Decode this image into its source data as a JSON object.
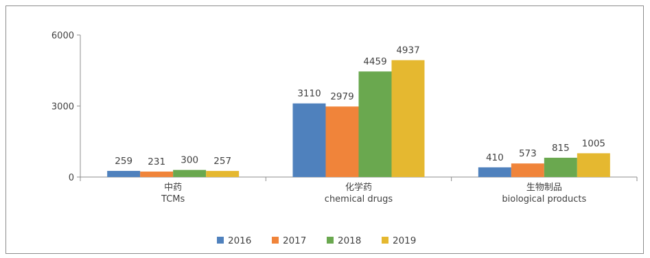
{
  "chart_data": {
    "type": "bar",
    "title": "",
    "xlabel": "",
    "ylabel": "",
    "ylim": [
      0,
      6000
    ],
    "yticks": [
      0,
      3000,
      6000
    ],
    "categories": [
      [
        "中药",
        "TCMs"
      ],
      [
        "化学药",
        "chemical drugs"
      ],
      [
        "生物制品",
        "biological products"
      ]
    ],
    "series": [
      {
        "name": "2016",
        "color": "#4f81bd",
        "values": [
          259,
          3110,
          410
        ]
      },
      {
        "name": "2017",
        "color": "#f0843a",
        "values": [
          231,
          2979,
          573
        ]
      },
      {
        "name": "2018",
        "color": "#6aa84f",
        "values": [
          300,
          4459,
          815
        ]
      },
      {
        "name": "2019",
        "color": "#e5b830",
        "values": [
          257,
          4937,
          1005
        ]
      }
    ],
    "grid": false,
    "legend": "bottom"
  }
}
